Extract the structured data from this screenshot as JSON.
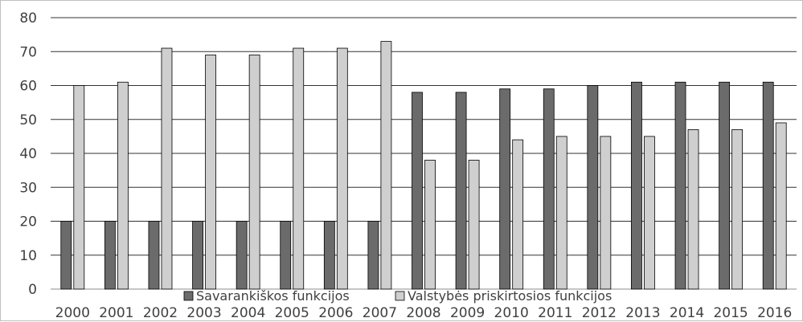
{
  "chart_data": {
    "type": "bar",
    "title": "",
    "xlabel": "",
    "ylabel": "",
    "categories": [
      "2000",
      "2001",
      "2002",
      "2003",
      "2004",
      "2005",
      "2006",
      "2007",
      "2008",
      "2009",
      "2010",
      "2011",
      "2012",
      "2013",
      "2014",
      "2015",
      "2016"
    ],
    "series": [
      {
        "name": "Savarankiškos funkcijos",
        "color": "#6b6b6b",
        "values": [
          20,
          20,
          20,
          20,
          20,
          20,
          20,
          20,
          58,
          58,
          59,
          59,
          60,
          61,
          61,
          61,
          61
        ]
      },
      {
        "name": "Valstybės priskirtosios funkcijos",
        "color": "#cfcfcf",
        "values": [
          60,
          61,
          71,
          69,
          69,
          71,
          71,
          73,
          38,
          38,
          44,
          45,
          45,
          45,
          47,
          47,
          49
        ]
      }
    ],
    "ylim": [
      0,
      80
    ],
    "yticks": [
      0,
      10,
      20,
      30,
      40,
      50,
      60,
      70,
      80
    ],
    "grid": true,
    "legend_position": "bottom"
  }
}
